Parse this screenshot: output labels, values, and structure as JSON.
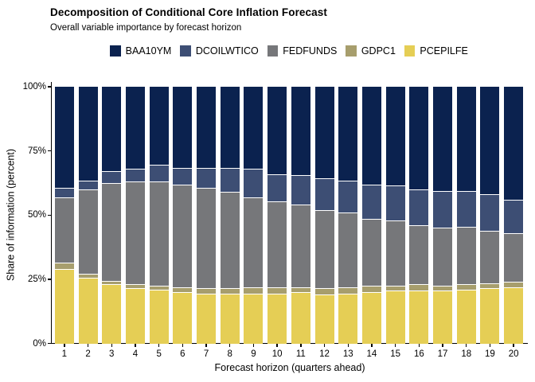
{
  "header": {
    "title": "Decomposition of Conditional Core Inflation Forecast",
    "subtitle": "Overall variable importance by forecast horizon"
  },
  "chart_data": {
    "type": "bar",
    "stacked": true,
    "units": "percent of information share",
    "title": "Decomposition of Conditional Core Inflation Forecast",
    "subtitle": "Overall variable importance by forecast horizon",
    "xlabel": "Forecast horizon (quarters ahead)",
    "ylabel": "Share of information (percent)",
    "legend_position": "top",
    "grid": false,
    "ylim": [
      0,
      100
    ],
    "y_tick_values": [
      0,
      25,
      50,
      75,
      100
    ],
    "y_tick_labels": [
      "0%",
      "25%",
      "50%",
      "75%",
      "100%"
    ],
    "categories": [
      1,
      2,
      3,
      4,
      5,
      6,
      7,
      8,
      9,
      10,
      11,
      12,
      13,
      14,
      15,
      16,
      17,
      18,
      19,
      20
    ],
    "stack_order_bottom_to_top": [
      "PCEPILFE",
      "GDPC1",
      "FEDFUNDS",
      "DCOILWTICO",
      "BAA10YM"
    ],
    "series": [
      {
        "name": "BAA10YM",
        "color": "#0B224F",
        "values": [
          39.5,
          36.5,
          33,
          32,
          30.5,
          31.5,
          31.5,
          31.5,
          32,
          34,
          34.5,
          35.5,
          36.5,
          38,
          38.5,
          40,
          40.5,
          40.5,
          42,
          44
        ]
      },
      {
        "name": "DCOILWTICO",
        "color": "#3D4E74",
        "values": [
          3.5,
          3.5,
          4.5,
          5,
          6.5,
          6.5,
          8,
          9.5,
          11,
          10.5,
          11.5,
          12.5,
          12.5,
          13.5,
          13.5,
          14,
          14.5,
          14,
          14,
          13
        ]
      },
      {
        "name": "FEDFUNDS",
        "color": "#76777A",
        "values": [
          25.5,
          33,
          38,
          40,
          40.5,
          40,
          39,
          37.5,
          35,
          33.5,
          32,
          30.5,
          29,
          26,
          25.5,
          23,
          22.5,
          22.5,
          20.5,
          19
        ]
      },
      {
        "name": "GDPC1",
        "color": "#A79E6D",
        "values": [
          2.5,
          1.5,
          1.5,
          1.5,
          1.5,
          2,
          2,
          2,
          2.5,
          2.5,
          2,
          2.5,
          2.5,
          2.5,
          2,
          2.5,
          2,
          2,
          2,
          2
        ]
      },
      {
        "name": "PCEPILFE",
        "color": "#E5CE55",
        "values": [
          29,
          25.5,
          23,
          21.5,
          21,
          20,
          19.5,
          19.5,
          19.5,
          19.5,
          20,
          19,
          19.5,
          20,
          20.5,
          20.5,
          20.5,
          21,
          21.5,
          22
        ]
      }
    ]
  }
}
